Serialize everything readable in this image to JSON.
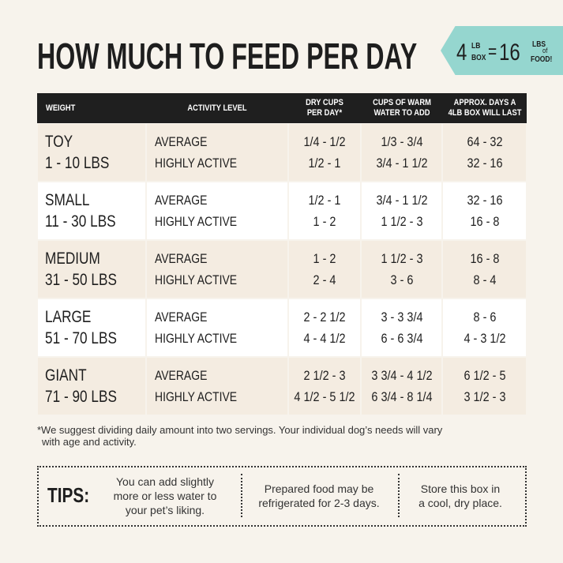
{
  "header": {
    "title": "HOW MUCH TO FEED PER DAY",
    "badge": {
      "box_amount": "4",
      "box_unit": [
        "LB",
        "BOX"
      ],
      "equals": "=",
      "food_amount": "16",
      "food_unit": [
        "LBS",
        "of",
        "FOOD!"
      ]
    }
  },
  "table": {
    "columns": [
      [
        "WEIGHT"
      ],
      [
        "ACTIVITY LEVEL"
      ],
      [
        "DRY CUPS",
        "PER DAY*"
      ],
      [
        "CUPS OF WARM",
        "WATER TO ADD"
      ],
      [
        "APPROX. DAYS A",
        "4LB BOX WILL LAST"
      ]
    ],
    "rows": [
      {
        "size": "TOY",
        "range": "1 - 10 LBS",
        "levels": [
          "AVERAGE",
          "HIGHLY ACTIVE"
        ],
        "dry": [
          "1/4 - 1/2",
          "1/2 - 1"
        ],
        "water": [
          "1/3 - 3/4",
          "3/4 - 1 1/2"
        ],
        "days": [
          "64 - 32",
          "32 - 16"
        ]
      },
      {
        "size": "SMALL",
        "range": "11 - 30 LBS",
        "levels": [
          "AVERAGE",
          "HIGHLY ACTIVE"
        ],
        "dry": [
          "1/2 - 1",
          "1 - 2"
        ],
        "water": [
          "3/4 - 1 1/2",
          "1 1/2 - 3"
        ],
        "days": [
          "32 - 16",
          "16 - 8"
        ]
      },
      {
        "size": "MEDIUM",
        "range": "31 - 50 LBS",
        "levels": [
          "AVERAGE",
          "HIGHLY ACTIVE"
        ],
        "dry": [
          "1 - 2",
          "2 - 4"
        ],
        "water": [
          "1 1/2 - 3",
          "3 - 6"
        ],
        "days": [
          "16 - 8",
          "8 - 4"
        ]
      },
      {
        "size": "LARGE",
        "range": "51 - 70 LBS",
        "levels": [
          "AVERAGE",
          "HIGHLY ACTIVE"
        ],
        "dry": [
          "2 - 2 1/2",
          "4 - 4 1/2"
        ],
        "water": [
          "3 - 3 3/4",
          "6 - 6 3/4"
        ],
        "days": [
          "8 - 6",
          "4 - 3 1/2"
        ]
      },
      {
        "size": "GIANT",
        "range": "71 - 90 LBS",
        "levels": [
          "AVERAGE",
          "HIGHLY ACTIVE"
        ],
        "dry": [
          "2 1/2 - 3",
          "4 1/2 - 5 1/2"
        ],
        "water": [
          "3 3/4 - 4 1/2",
          "6 3/4 - 8 1/4"
        ],
        "days": [
          "6 1/2 - 5",
          "3 1/2 - 3"
        ]
      }
    ]
  },
  "footnote": [
    "*We suggest dividing daily amount into two servings. Your individual dog’s needs will vary",
    "with age and activity."
  ],
  "tips": {
    "label": "TIPS:",
    "items": [
      [
        "You can add slightly",
        "more or less water to",
        "your pet’s liking."
      ],
      [
        "Prepared food may be",
        "refrigerated for 2-3 days."
      ],
      [
        "Store this box in",
        "a cool, dry place."
      ]
    ]
  }
}
